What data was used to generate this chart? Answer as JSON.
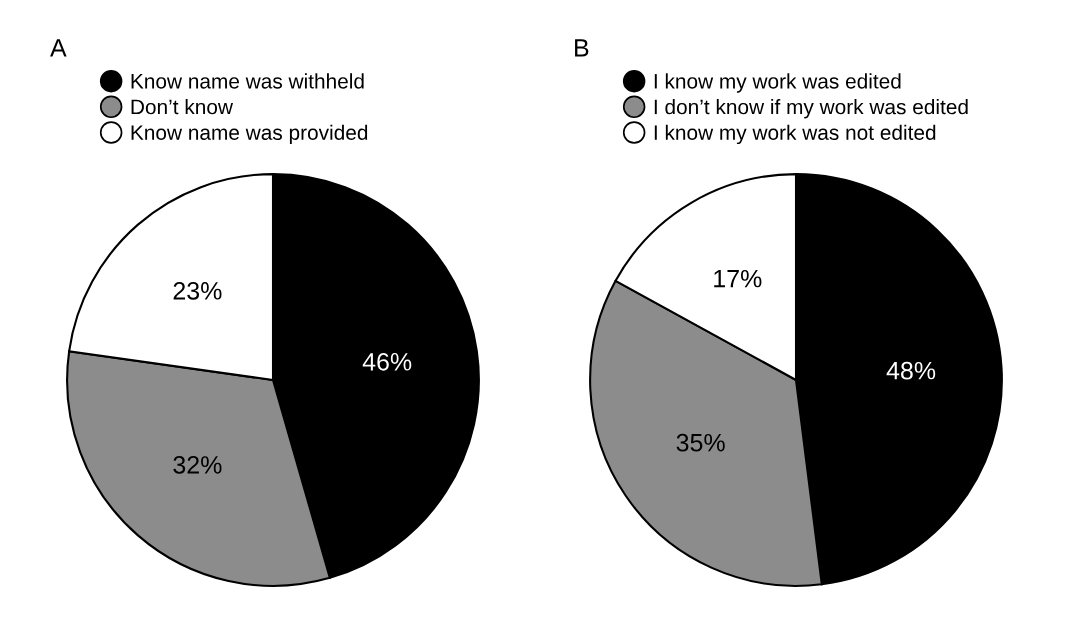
{
  "chart_data": [
    {
      "type": "pie",
      "title": "A",
      "categories": [
        "Know name was withheld",
        "Don’t know",
        "Know name was provided"
      ],
      "values": [
        46,
        32,
        23
      ],
      "value_labels": [
        "46%",
        "32%",
        "23%"
      ],
      "colors": [
        "#000000",
        "#8c8c8c",
        "#ffffff"
      ],
      "legend": "top left"
    },
    {
      "type": "pie",
      "title": "B",
      "categories": [
        "I know my work was edited",
        "I don’t know if my work was edited",
        "I know my work was not edited"
      ],
      "values": [
        48,
        35,
        17
      ],
      "value_labels": [
        "48%",
        "35%",
        "17%"
      ],
      "colors": [
        "#000000",
        "#8c8c8c",
        "#ffffff"
      ],
      "legend": "top left"
    }
  ]
}
